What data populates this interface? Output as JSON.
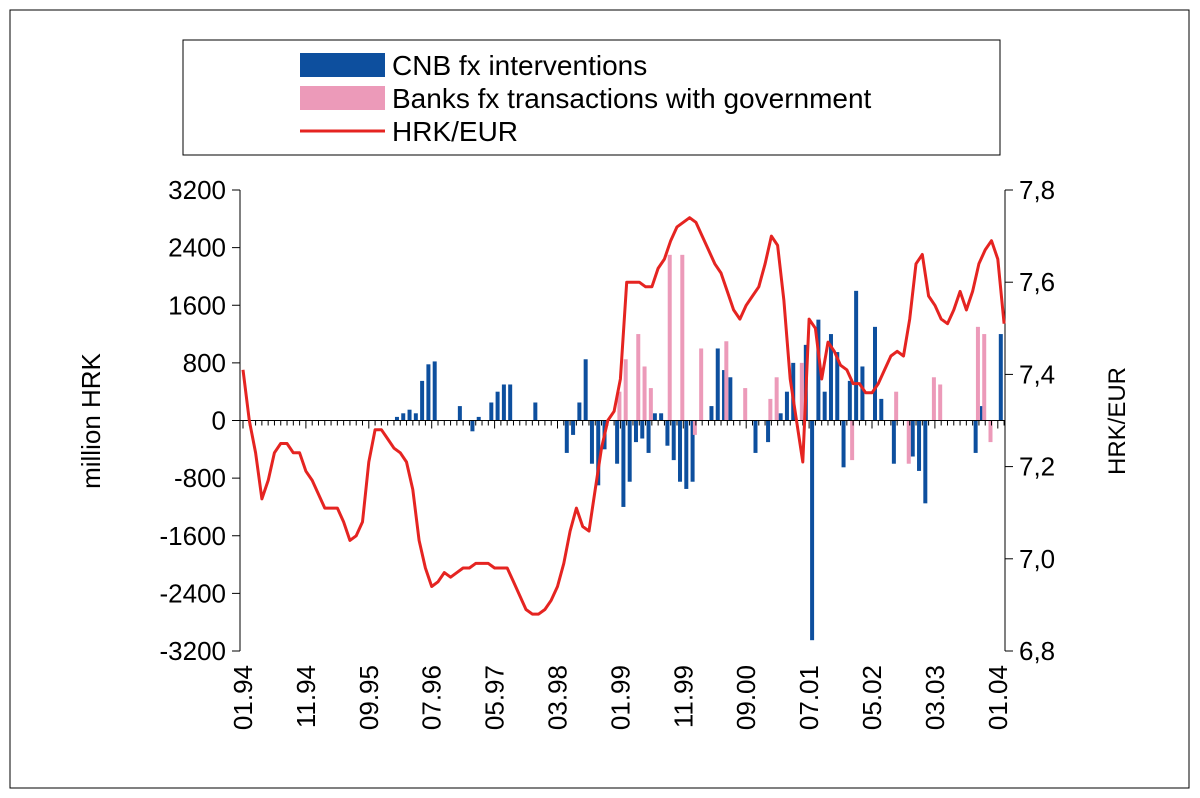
{
  "chart_data": {
    "type": "bar-line",
    "categories": [
      "01.94",
      null,
      null,
      null,
      null,
      null,
      null,
      null,
      null,
      null,
      "11.94",
      null,
      null,
      null,
      null,
      null,
      null,
      null,
      null,
      null,
      "09.95",
      null,
      null,
      null,
      null,
      null,
      null,
      null,
      null,
      null,
      "07.96",
      null,
      null,
      null,
      null,
      null,
      null,
      null,
      null,
      null,
      "05.97",
      null,
      null,
      null,
      null,
      null,
      null,
      null,
      null,
      null,
      "03.98",
      null,
      null,
      null,
      null,
      null,
      null,
      null,
      null,
      null,
      "01.99",
      null,
      null,
      null,
      null,
      null,
      null,
      null,
      null,
      null,
      "11.99",
      null,
      null,
      null,
      null,
      null,
      null,
      null,
      null,
      null,
      "09.00",
      null,
      null,
      null,
      null,
      null,
      null,
      null,
      null,
      null,
      "07.01",
      null,
      null,
      null,
      null,
      null,
      null,
      null,
      null,
      null,
      "05.02",
      null,
      null,
      null,
      null,
      null,
      null,
      null,
      null,
      null,
      "03.03",
      null,
      null,
      null,
      null,
      null,
      null,
      null,
      null,
      null,
      "01.04",
      null
    ],
    "series": [
      {
        "name": "CNB fx interventions",
        "color": "#0d4f9e",
        "values": [
          0,
          0,
          0,
          0,
          0,
          0,
          0,
          0,
          0,
          0,
          0,
          0,
          0,
          0,
          0,
          0,
          0,
          0,
          0,
          0,
          0,
          0,
          0,
          0,
          50,
          100,
          150,
          100,
          550,
          780,
          820,
          0,
          0,
          0,
          200,
          0,
          -150,
          50,
          0,
          250,
          400,
          500,
          500,
          0,
          0,
          0,
          250,
          0,
          0,
          0,
          0,
          -450,
          -200,
          250,
          850,
          -600,
          -900,
          -400,
          0,
          -600,
          -1200,
          -850,
          -300,
          -250,
          -450,
          100,
          100,
          -350,
          -550,
          -850,
          -950,
          -850,
          0,
          0,
          200,
          1000,
          700,
          600,
          0,
          0,
          0,
          -450,
          0,
          -300,
          0,
          100,
          400,
          800,
          0,
          1050,
          -3050,
          1400,
          400,
          1200,
          950,
          -650,
          550,
          1800,
          750,
          0,
          1300,
          300,
          0,
          -600,
          0,
          0,
          -500,
          -700,
          -1150,
          0,
          0,
          0,
          0,
          0,
          0,
          0,
          -450,
          200,
          0,
          0,
          1200,
          0
        ]
      },
      {
        "name": "Banks fx transactions with government",
        "color": "#ec9ab9",
        "values": [
          0,
          0,
          0,
          0,
          0,
          0,
          0,
          0,
          0,
          0,
          0,
          0,
          0,
          0,
          0,
          0,
          0,
          0,
          0,
          0,
          0,
          0,
          0,
          0,
          0,
          0,
          0,
          0,
          0,
          0,
          0,
          0,
          0,
          0,
          0,
          0,
          0,
          0,
          0,
          0,
          0,
          0,
          0,
          0,
          0,
          0,
          0,
          0,
          0,
          0,
          0,
          0,
          0,
          0,
          0,
          0,
          0,
          0,
          0,
          0,
          400,
          850,
          0,
          1200,
          750,
          450,
          0,
          0,
          2300,
          0,
          2300,
          0,
          -200,
          1000,
          0,
          0,
          0,
          1100,
          0,
          0,
          450,
          0,
          0,
          0,
          300,
          600,
          0,
          0,
          0,
          800,
          0,
          0,
          0,
          0,
          0,
          0,
          0,
          -550,
          0,
          0,
          0,
          0,
          0,
          0,
          400,
          0,
          -600,
          0,
          0,
          0,
          600,
          500,
          0,
          0,
          0,
          0,
          0,
          1300,
          1200,
          -300,
          0,
          0
        ]
      },
      {
        "name": "HRK/EUR",
        "color": "#e52421",
        "axis": "y2",
        "values": [
          7.41,
          7.3,
          7.23,
          7.13,
          7.17,
          7.23,
          7.25,
          7.25,
          7.23,
          7.23,
          7.19,
          7.17,
          7.14,
          7.11,
          7.11,
          7.11,
          7.08,
          7.04,
          7.05,
          7.08,
          7.21,
          7.28,
          7.28,
          7.26,
          7.24,
          7.23,
          7.21,
          7.15,
          7.04,
          6.98,
          6.94,
          6.95,
          6.97,
          6.96,
          6.97,
          6.98,
          6.98,
          6.99,
          6.99,
          6.99,
          6.98,
          6.98,
          6.98,
          6.95,
          6.92,
          6.89,
          6.88,
          6.88,
          6.89,
          6.91,
          6.94,
          6.99,
          7.06,
          7.11,
          7.07,
          7.06,
          7.15,
          7.24,
          7.3,
          7.32,
          7.39,
          7.6,
          7.6,
          7.6,
          7.59,
          7.59,
          7.63,
          7.65,
          7.69,
          7.72,
          7.73,
          7.74,
          7.73,
          7.7,
          7.67,
          7.64,
          7.62,
          7.58,
          7.54,
          7.52,
          7.55,
          7.57,
          7.59,
          7.64,
          7.7,
          7.68,
          7.56,
          7.39,
          7.3,
          7.21,
          7.52,
          7.5,
          7.39,
          7.47,
          7.45,
          7.42,
          7.41,
          7.38,
          7.38,
          7.36,
          7.36,
          7.38,
          7.41,
          7.44,
          7.45,
          7.44,
          7.52,
          7.64,
          7.66,
          7.57,
          7.55,
          7.52,
          7.51,
          7.54,
          7.58,
          7.54,
          7.58,
          7.64,
          7.67,
          7.69,
          7.65,
          7.51
        ]
      }
    ],
    "y_label": "million HRK",
    "y2_label": "HRK/EUR",
    "ylim": [
      -3200,
      3200
    ],
    "yticks": [
      -3200,
      -2400,
      -1600,
      -800,
      0,
      800,
      1600,
      2400,
      3200
    ],
    "y2lim": [
      6.8,
      7.8
    ],
    "y2ticks": [
      {
        "value": 6.8,
        "label": "6,8"
      },
      {
        "value": 7.0,
        "label": "7,0"
      },
      {
        "value": 7.2,
        "label": "7,2"
      },
      {
        "value": 7.4,
        "label": "7,4"
      },
      {
        "value": 7.6,
        "label": "7,6"
      },
      {
        "value": 7.8,
        "label": "7,8"
      }
    ]
  }
}
